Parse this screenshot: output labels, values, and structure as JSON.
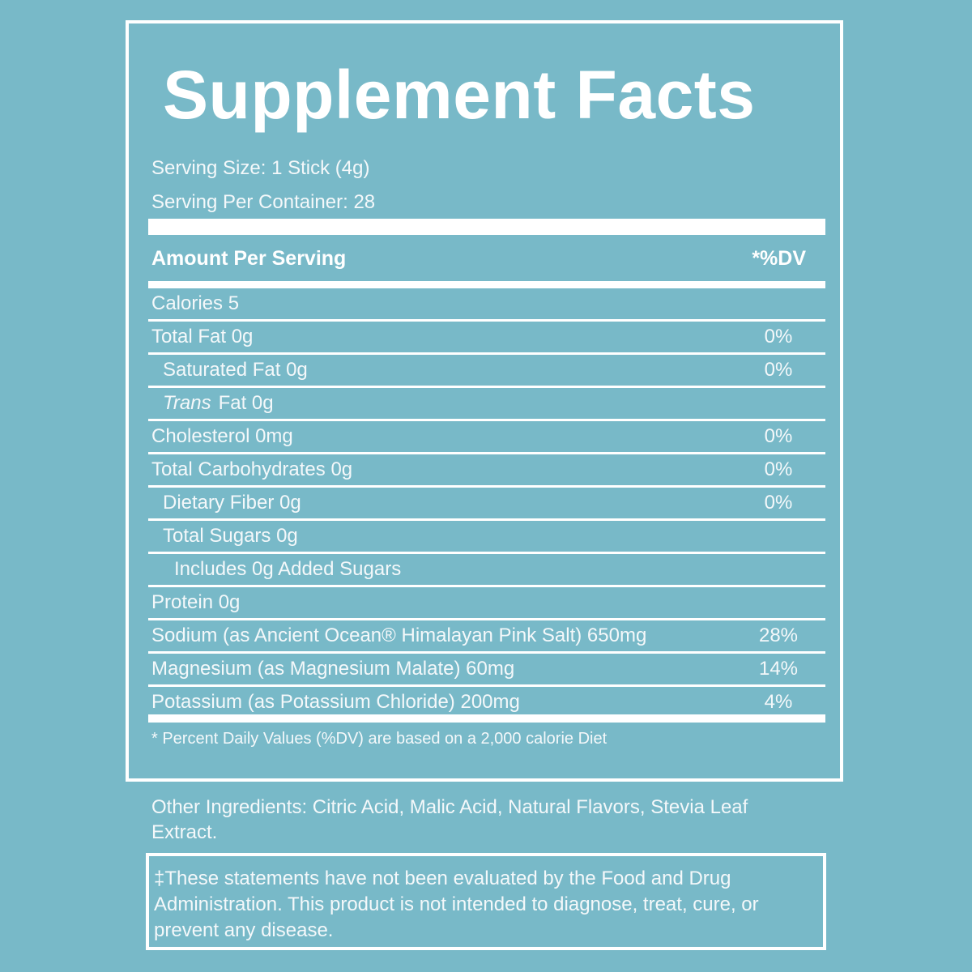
{
  "label": {
    "title": "Supplement Facts",
    "serving_size": "Serving Size: 1 Stick (4g)",
    "servings_per_container": "Serving Per Container: 28",
    "header_amount": "Amount Per Serving",
    "header_dv": "*%DV",
    "rows": [
      {
        "name": "Calories 5",
        "dv": ""
      },
      {
        "name": "Total Fat 0g",
        "dv": "0%"
      },
      {
        "name": "Saturated Fat 0g",
        "dv": "0%"
      },
      {
        "italic": "Trans",
        "name": "Fat 0g",
        "dv": ""
      },
      {
        "name": "Cholesterol 0mg",
        "dv": "0%"
      },
      {
        "name": "Total Carbohydrates 0g",
        "dv": "0%"
      },
      {
        "name": "Dietary Fiber 0g",
        "dv": "0%"
      },
      {
        "name": "Total Sugars 0g",
        "dv": ""
      },
      {
        "name": "Includes 0g Added Sugars",
        "dv": ""
      },
      {
        "name": "Protein 0g",
        "dv": ""
      },
      {
        "name": "Sodium (as Ancient Ocean® Himalayan Pink Salt) 650mg",
        "dv": "28%"
      },
      {
        "name": "Magnesium (as Magnesium Malate) 60mg",
        "dv": "14%"
      },
      {
        "name": "Potassium (as Potassium Chloride) 200mg",
        "dv": "4%"
      }
    ],
    "footnote": "* Percent Daily Values (%DV) are based on a 2,000 calorie Diet"
  },
  "other_ingredients": "Other Ingredients: Citric Acid, Malic Acid, Natural Flavors, Stevia Leaf Extract.",
  "disclaimer": "‡These statements have not been evaluated by the Food and Drug Administration. This product is not intended to diagnose, treat, cure, or prevent any disease."
}
